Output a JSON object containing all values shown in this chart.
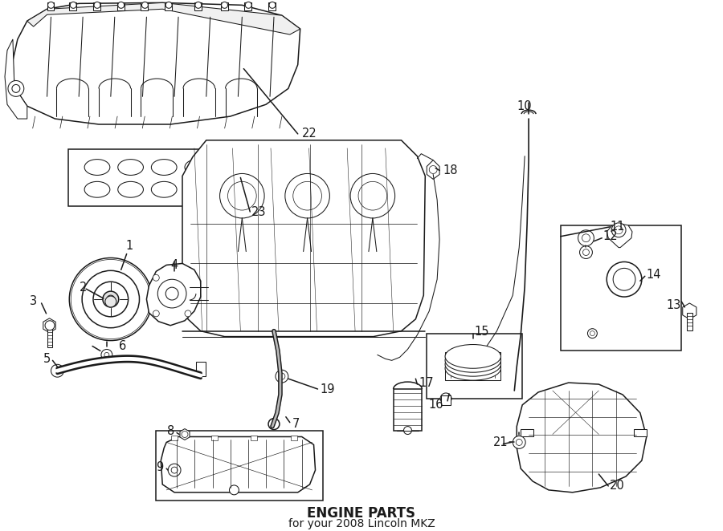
{
  "title": "ENGINE PARTS",
  "subtitle": "for your 2008 Lincoln MKZ",
  "bg_color": "#ffffff",
  "line_color": "#1a1a1a",
  "title_fontsize": 12,
  "subtitle_fontsize": 10,
  "label_fontsize": 10.5,
  "fig_w": 9.0,
  "fig_h": 6.62,
  "dpi": 100
}
